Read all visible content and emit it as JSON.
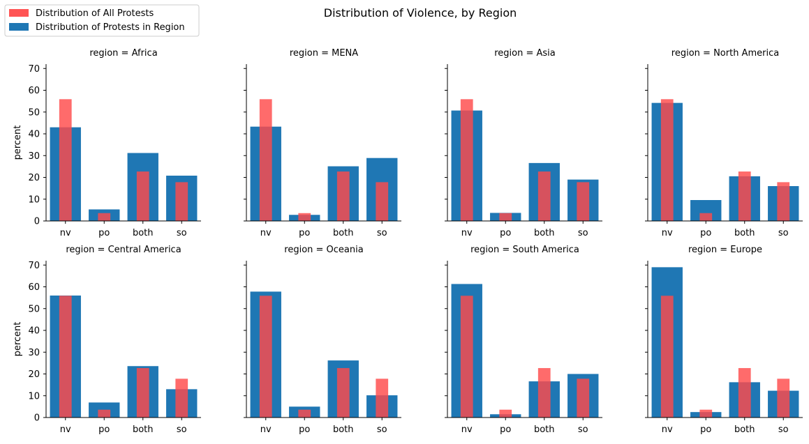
{
  "chart_data": {
    "type": "bar",
    "title": "Distribution of Violence, by Region",
    "ylabel": "percent",
    "xlabel": "",
    "categories": [
      "nv",
      "po",
      "both",
      "so"
    ],
    "ylim": [
      0,
      72
    ],
    "yticks": [
      0,
      10,
      20,
      30,
      40,
      50,
      60,
      70
    ],
    "grid": false,
    "legend_position": "top-left",
    "legend": [
      {
        "label": "Distribution of All Protests",
        "color": "#ff4b4b"
      },
      {
        "label": "Distribution of Protests in Region",
        "color": "#1f77b4"
      }
    ],
    "overall_values": [
      55.9,
      3.6,
      22.7,
      17.8
    ],
    "panels": [
      {
        "title": "region = Africa",
        "region_values": [
          43.0,
          5.3,
          31.2,
          20.8
        ]
      },
      {
        "title": "region = MENA",
        "region_values": [
          43.3,
          2.8,
          25.1,
          28.9
        ]
      },
      {
        "title": "region = Asia",
        "region_values": [
          50.7,
          3.7,
          26.6,
          19.0
        ]
      },
      {
        "title": "region = North America",
        "region_values": [
          54.2,
          9.6,
          20.5,
          16.0
        ]
      },
      {
        "title": "region = Central America",
        "region_values": [
          56.0,
          6.9,
          23.6,
          13.0
        ]
      },
      {
        "title": "region = Oceania",
        "region_values": [
          57.8,
          5.0,
          26.2,
          10.2
        ]
      },
      {
        "title": "region = South America",
        "region_values": [
          61.3,
          1.5,
          16.6,
          20.0
        ]
      },
      {
        "title": "region = Europe",
        "region_values": [
          69.0,
          2.5,
          16.2,
          12.3
        ]
      }
    ],
    "colors": {
      "overall": "#ff4b4b",
      "region": "#1f77b4"
    }
  }
}
